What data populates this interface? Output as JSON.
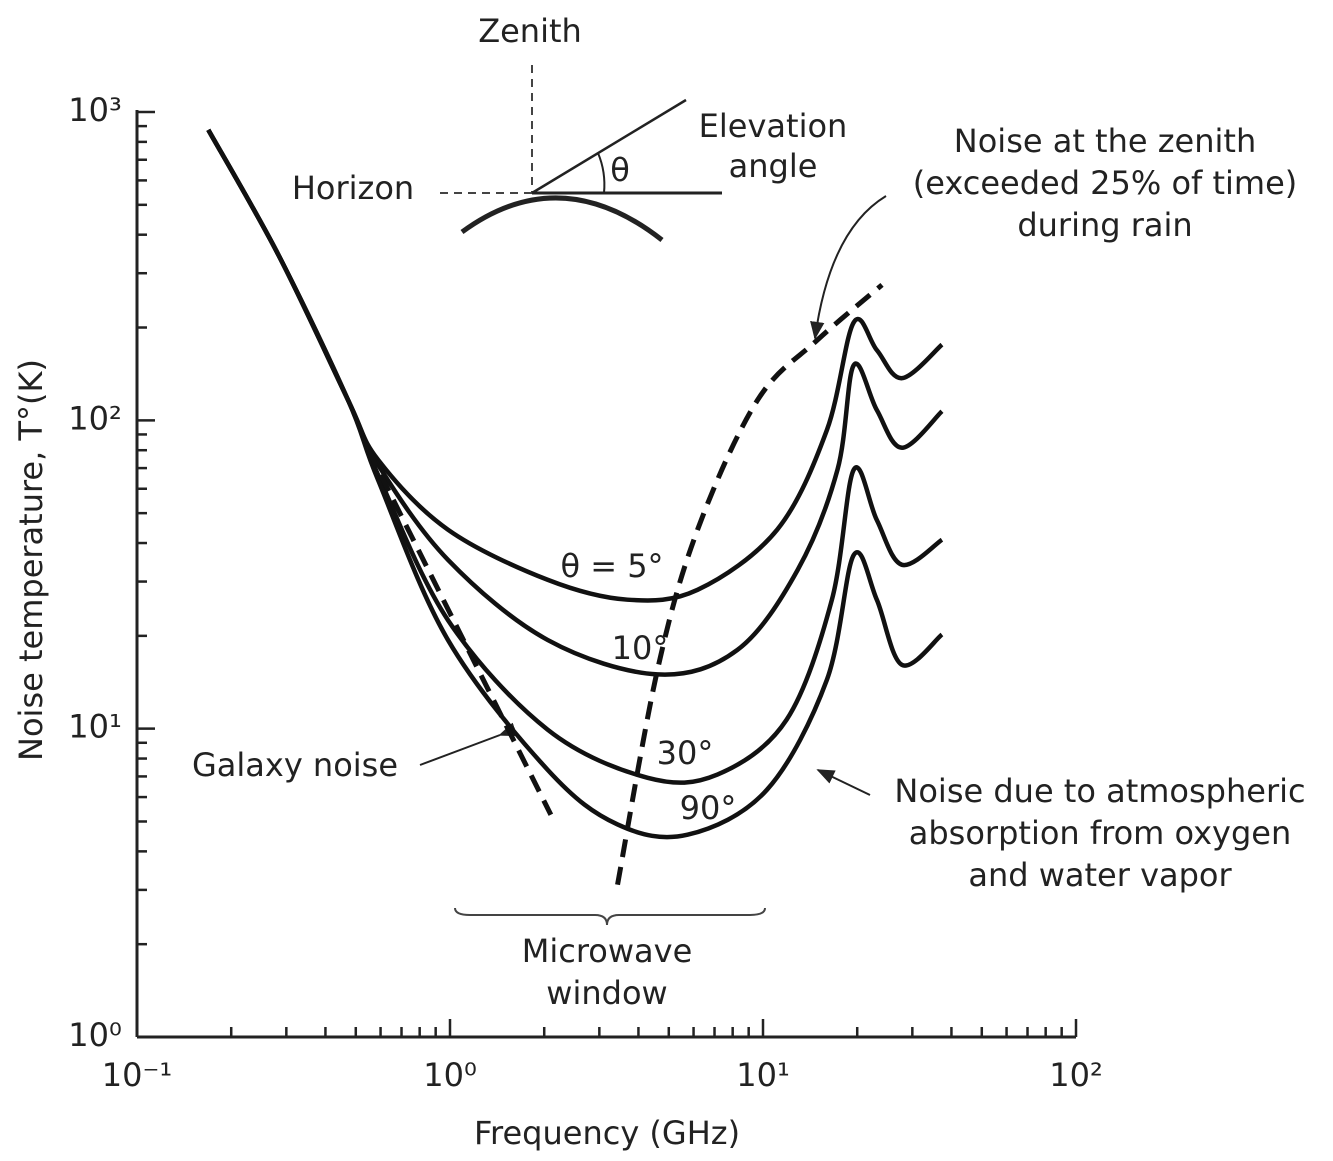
{
  "chart_data": {
    "type": "line",
    "xlabel": "Frequency (GHz)",
    "ylabel": "Noise temperature, T°(K)",
    "log_x": true,
    "log_y": true,
    "grid": false,
    "xlim": [
      0.1,
      100
    ],
    "ylim": [
      1,
      1000
    ],
    "xticks": [
      {
        "value": 0.1,
        "label": "10⁻¹"
      },
      {
        "value": 1,
        "label": "10⁰"
      },
      {
        "value": 10,
        "label": "10¹"
      },
      {
        "value": 100,
        "label": "10²"
      }
    ],
    "yticks": [
      {
        "value": 1,
        "label": "10⁰"
      },
      {
        "value": 10,
        "label": "10¹"
      },
      {
        "value": 100,
        "label": "10²"
      },
      {
        "value": 1000,
        "label": "10³"
      }
    ],
    "xminorticks": [
      0.2,
      0.3,
      0.4,
      0.5,
      0.6,
      0.7,
      0.8,
      0.9,
      2,
      3,
      4,
      5,
      6,
      7,
      8,
      9,
      20,
      30,
      40,
      50,
      60,
      70,
      80,
      90
    ],
    "yminorticks": [
      2,
      3,
      4,
      5,
      6,
      7,
      8,
      9,
      20,
      30,
      40,
      50,
      60,
      70,
      80,
      90,
      200,
      300,
      400,
      500,
      600,
      700,
      800,
      900
    ],
    "series": [
      {
        "name": "θ = 5°",
        "color": "#111111",
        "style": "solid",
        "x": [
          0.169,
          0.283,
          0.473,
          0.589,
          0.985,
          2.05,
          3.69,
          6.18,
          11.1,
          16.0,
          19.5,
          23.1,
          27.8,
          37.3
        ],
        "values": [
          875,
          344,
          116,
          74.5,
          44.2,
          30.4,
          26.2,
          28.2,
          44.2,
          93,
          208,
          169,
          137,
          176
        ]
      },
      {
        "name": "10°",
        "color": "#111111",
        "style": "solid",
        "x": [
          0.169,
          0.283,
          0.473,
          0.589,
          0.985,
          2.05,
          4.6,
          8.28,
          12.9,
          17.3,
          19.5,
          23.1,
          27.8,
          37.3
        ],
        "values": [
          875,
          344,
          116,
          71.8,
          35.3,
          19.4,
          15.0,
          18.0,
          32.7,
          69.2,
          151,
          108,
          81.5,
          107
        ]
      },
      {
        "name": "30°",
        "color": "#111111",
        "style": "solid",
        "x": [
          0.169,
          0.283,
          0.473,
          0.589,
          0.985,
          2.05,
          4.28,
          7.15,
          11.9,
          16.6,
          19.5,
          23.1,
          27.8,
          37.3
        ],
        "values": [
          875,
          344,
          116,
          66.6,
          22.5,
          9.93,
          6.93,
          7.1,
          10.7,
          26.2,
          69.2,
          47.5,
          34.0,
          41.0
        ]
      },
      {
        "name": "90°",
        "color": "#111111",
        "style": "solid",
        "x": [
          0.169,
          0.283,
          0.473,
          0.589,
          0.985,
          2.05,
          3.43,
          5.74,
          10.3,
          16.0,
          19.5,
          23.1,
          27.8,
          37.3
        ],
        "values": [
          875,
          344,
          116,
          64.1,
          19.4,
          7.36,
          4.89,
          4.53,
          6.34,
          14.4,
          36.6,
          26.2,
          16.1,
          20.2
        ]
      },
      {
        "name": "Galaxy noise",
        "color": "#111111",
        "style": "dashed",
        "x": [
          0.548,
          2.1
        ],
        "values": [
          80.2,
          5.26
        ]
      },
      {
        "name": [
          "Noise at the zenith",
          "(exceeded 25% of time)",
          "during rain"
        ],
        "color": "#111111",
        "style": "dashed",
        "x": [
          3.43,
          4.6,
          6.18,
          9.59,
          14.9,
          24.0
        ],
        "values": [
          3.12,
          15.5,
          44.2,
          116,
          182,
          275
        ]
      }
    ],
    "annotations": [
      {
        "lines": [
          "Noise due to atmospheric",
          "absorption from oxygen",
          "and water vapor"
        ]
      },
      {
        "lines": [
          "Microwave",
          "window"
        ]
      }
    ],
    "inset": {
      "zenith": "Zenith",
      "horizon": "Horizon",
      "elevation": [
        "Elevation",
        "angle"
      ],
      "theta": "θ"
    }
  }
}
